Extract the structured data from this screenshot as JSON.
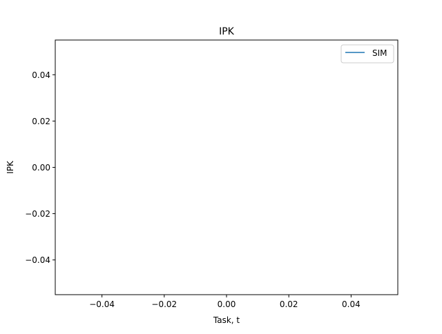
{
  "chart_data": {
    "type": "line",
    "title": "IPK",
    "xlabel": "Task, t",
    "ylabel": "IPK",
    "xlim": [
      -0.055,
      0.055
    ],
    "ylim": [
      -0.055,
      0.055
    ],
    "xticks": [
      -0.04,
      -0.02,
      0.0,
      0.02,
      0.04
    ],
    "xtick_labels": [
      "−0.04",
      "−0.02",
      "0.00",
      "0.02",
      "0.04"
    ],
    "yticks": [
      -0.04,
      -0.02,
      0.0,
      0.02,
      0.04
    ],
    "ytick_labels": [
      "−0.04",
      "−0.02",
      "0.00",
      "0.02",
      "0.04"
    ],
    "grid": false,
    "legend_position": "top-right",
    "series": [
      {
        "name": "SIM",
        "color": "#1f77b4",
        "x": [],
        "y": []
      }
    ]
  }
}
